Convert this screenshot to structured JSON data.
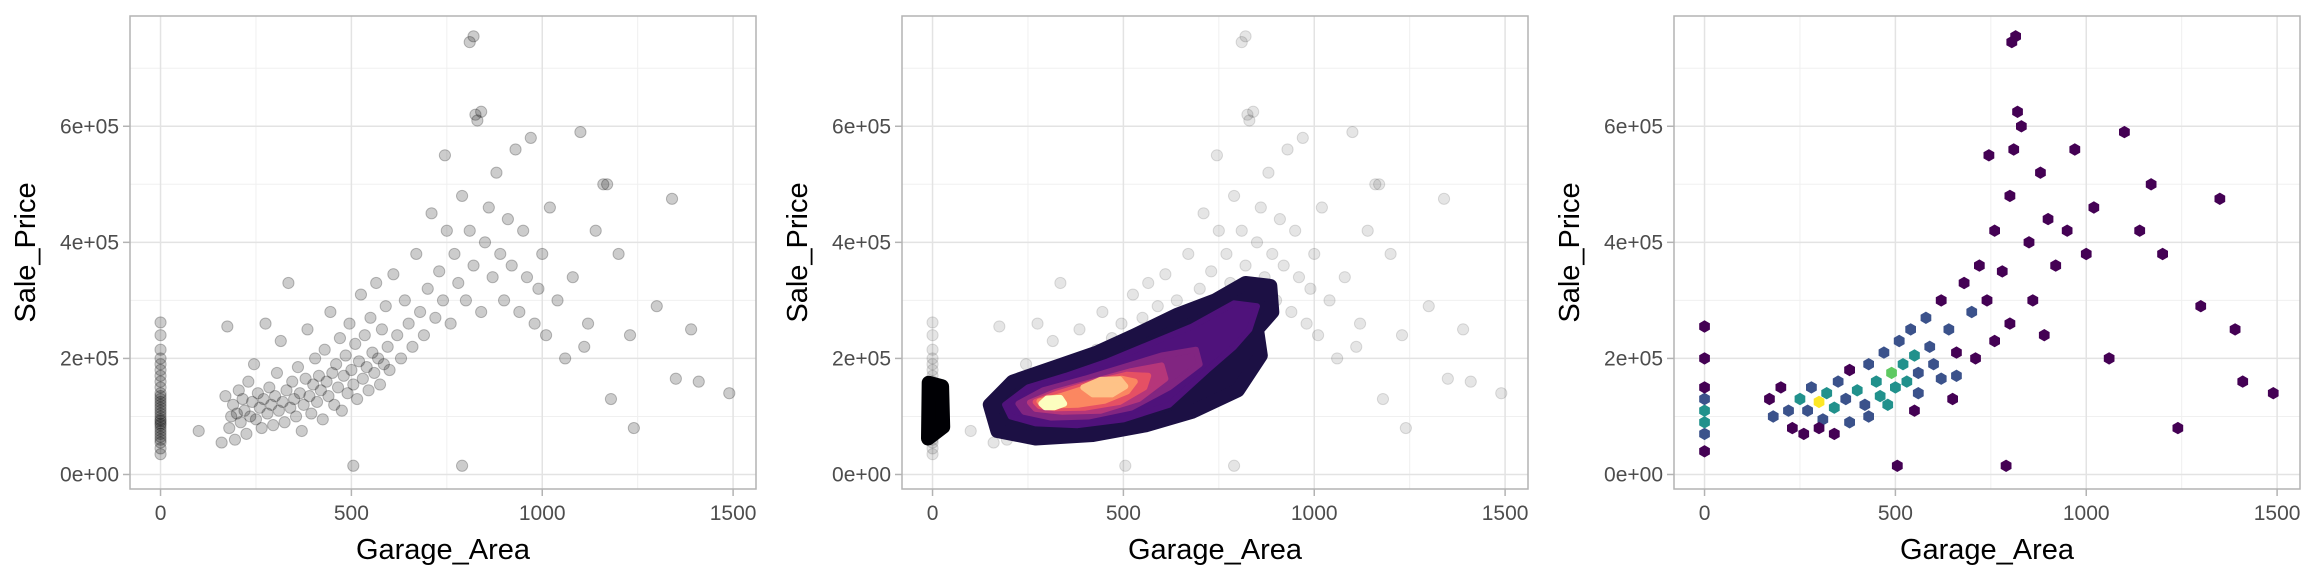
{
  "chart_data": [
    {
      "type": "scatter",
      "panel": "points",
      "xlabel": "Garage_Area",
      "ylabel": "Sale_Price",
      "xlim": [
        -80,
        1560
      ],
      "ylim": [
        -25000,
        790000
      ],
      "xticks": [
        0,
        500,
        1000,
        1500
      ],
      "xtick_labels": [
        "0",
        "500",
        "1000",
        "1500"
      ],
      "yticks": [
        0,
        200000,
        400000,
        600000
      ],
      "ytick_labels": [
        "0e+00",
        "2e+05",
        "4e+05",
        "6e+05"
      ],
      "grid": true,
      "point_color": "#000000",
      "point_alpha": 0.2
    },
    {
      "type": "scatter",
      "panel": "points-with-density-contours",
      "xlabel": "Garage_Area",
      "ylabel": "Sale_Price",
      "xlim": [
        -80,
        1560
      ],
      "ylim": [
        -25000,
        790000
      ],
      "xticks": [
        0,
        500,
        1000,
        1500
      ],
      "xtick_labels": [
        "0",
        "500",
        "1000",
        "1500"
      ],
      "yticks": [
        0,
        200000,
        400000,
        600000
      ],
      "ytick_labels": [
        "0e+00",
        "2e+05",
        "4e+05",
        "6e+05"
      ],
      "grid": true,
      "point_color": "#000000",
      "point_alpha": 0.1,
      "density_palette": [
        "#000004",
        "#1c1044",
        "#4f127b",
        "#812581",
        "#b5367a",
        "#e55064",
        "#fb8761",
        "#fec287",
        "#fcfdbf"
      ],
      "density_peaks": [
        {
          "x": 300,
          "y": 125000,
          "label": "peak-1"
        },
        {
          "x": 460,
          "y": 165000,
          "label": "peak-2"
        }
      ]
    },
    {
      "type": "heatmap",
      "panel": "hexbin",
      "xlabel": "Garage_Area",
      "ylabel": "Sale_Price",
      "xlim": [
        -80,
        1560
      ],
      "ylim": [
        -25000,
        790000
      ],
      "xticks": [
        0,
        500,
        1000,
        1500
      ],
      "xtick_labels": [
        "0",
        "500",
        "1000",
        "1500"
      ],
      "yticks": [
        0,
        200000,
        400000,
        600000
      ],
      "ytick_labels": [
        "0e+00",
        "2e+05",
        "4e+05",
        "6e+05"
      ],
      "grid": true,
      "fill_palette": [
        "#440154",
        "#3b528b",
        "#21918c",
        "#5ec962",
        "#fde725"
      ]
    }
  ],
  "points": [
    [
      0,
      35000
    ],
    [
      0,
      45000
    ],
    [
      0,
      55000
    ],
    [
      0,
      60000
    ],
    [
      0,
      65000
    ],
    [
      0,
      70000
    ],
    [
      0,
      75000
    ],
    [
      0,
      80000
    ],
    [
      0,
      85000
    ],
    [
      0,
      88000
    ],
    [
      0,
      92000
    ],
    [
      0,
      95000
    ],
    [
      0,
      100000
    ],
    [
      0,
      105000
    ],
    [
      0,
      110000
    ],
    [
      0,
      115000
    ],
    [
      0,
      120000
    ],
    [
      0,
      125000
    ],
    [
      0,
      130000
    ],
    [
      0,
      135000
    ],
    [
      0,
      140000
    ],
    [
      0,
      150000
    ],
    [
      0,
      160000
    ],
    [
      0,
      170000
    ],
    [
      0,
      180000
    ],
    [
      0,
      190000
    ],
    [
      0,
      200000
    ],
    [
      0,
      215000
    ],
    [
      0,
      240000
    ],
    [
      0,
      262000
    ],
    [
      100,
      75000
    ],
    [
      160,
      55000
    ],
    [
      170,
      135000
    ],
    [
      175,
      255000
    ],
    [
      180,
      80000
    ],
    [
      185,
      100000
    ],
    [
      190,
      120000
    ],
    [
      195,
      60000
    ],
    [
      200,
      105000
    ],
    [
      205,
      145000
    ],
    [
      210,
      90000
    ],
    [
      215,
      130000
    ],
    [
      220,
      110000
    ],
    [
      225,
      70000
    ],
    [
      230,
      160000
    ],
    [
      235,
      100000
    ],
    [
      240,
      125000
    ],
    [
      245,
      190000
    ],
    [
      250,
      95000
    ],
    [
      255,
      140000
    ],
    [
      260,
      115000
    ],
    [
      265,
      80000
    ],
    [
      270,
      130000
    ],
    [
      275,
      260000
    ],
    [
      280,
      105000
    ],
    [
      285,
      150000
    ],
    [
      290,
      120000
    ],
    [
      295,
      85000
    ],
    [
      300,
      135000
    ],
    [
      305,
      175000
    ],
    [
      310,
      110000
    ],
    [
      315,
      230000
    ],
    [
      320,
      125000
    ],
    [
      325,
      90000
    ],
    [
      330,
      145000
    ],
    [
      335,
      330000
    ],
    [
      340,
      115000
    ],
    [
      345,
      160000
    ],
    [
      350,
      130000
    ],
    [
      355,
      100000
    ],
    [
      360,
      185000
    ],
    [
      365,
      140000
    ],
    [
      370,
      75000
    ],
    [
      375,
      120000
    ],
    [
      380,
      165000
    ],
    [
      385,
      250000
    ],
    [
      390,
      135000
    ],
    [
      395,
      105000
    ],
    [
      400,
      155000
    ],
    [
      405,
      200000
    ],
    [
      410,
      125000
    ],
    [
      415,
      170000
    ],
    [
      420,
      145000
    ],
    [
      425,
      95000
    ],
    [
      430,
      215000
    ],
    [
      435,
      160000
    ],
    [
      440,
      135000
    ],
    [
      445,
      280000
    ],
    [
      450,
      175000
    ],
    [
      455,
      120000
    ],
    [
      460,
      190000
    ],
    [
      465,
      150000
    ],
    [
      470,
      235000
    ],
    [
      475,
      110000
    ],
    [
      480,
      170000
    ],
    [
      485,
      205000
    ],
    [
      490,
      140000
    ],
    [
      495,
      260000
    ],
    [
      500,
      180000
    ],
    [
      505,
      155000
    ],
    [
      510,
      225000
    ],
    [
      515,
      130000
    ],
    [
      520,
      195000
    ],
    [
      525,
      310000
    ],
    [
      530,
      165000
    ],
    [
      535,
      240000
    ],
    [
      540,
      185000
    ],
    [
      545,
      145000
    ],
    [
      550,
      270000
    ],
    [
      555,
      210000
    ],
    [
      560,
      175000
    ],
    [
      565,
      330000
    ],
    [
      570,
      200000
    ],
    [
      575,
      155000
    ],
    [
      580,
      250000
    ],
    [
      585,
      190000
    ],
    [
      590,
      290000
    ],
    [
      595,
      220000
    ],
    [
      600,
      180000
    ],
    [
      610,
      345000
    ],
    [
      620,
      240000
    ],
    [
      630,
      200000
    ],
    [
      640,
      300000
    ],
    [
      650,
      260000
    ],
    [
      660,
      220000
    ],
    [
      670,
      380000
    ],
    [
      680,
      280000
    ],
    [
      690,
      240000
    ],
    [
      700,
      320000
    ],
    [
      710,
      450000
    ],
    [
      720,
      270000
    ],
    [
      730,
      350000
    ],
    [
      740,
      300000
    ],
    [
      750,
      420000
    ],
    [
      760,
      260000
    ],
    [
      770,
      380000
    ],
    [
      780,
      330000
    ],
    [
      790,
      480000
    ],
    [
      800,
      300000
    ],
    [
      810,
      420000
    ],
    [
      820,
      360000
    ],
    [
      830,
      610000
    ],
    [
      840,
      280000
    ],
    [
      850,
      400000
    ],
    [
      860,
      460000
    ],
    [
      870,
      340000
    ],
    [
      880,
      520000
    ],
    [
      890,
      380000
    ],
    [
      900,
      300000
    ],
    [
      910,
      440000
    ],
    [
      920,
      360000
    ],
    [
      930,
      560000
    ],
    [
      940,
      280000
    ],
    [
      950,
      420000
    ],
    [
      960,
      340000
    ],
    [
      970,
      580000
    ],
    [
      980,
      260000
    ],
    [
      990,
      320000
    ],
    [
      1000,
      380000
    ],
    [
      1010,
      240000
    ],
    [
      1020,
      460000
    ],
    [
      1040,
      300000
    ],
    [
      1060,
      200000
    ],
    [
      1080,
      340000
    ],
    [
      1100,
      590000
    ],
    [
      1110,
      220000
    ],
    [
      1120,
      260000
    ],
    [
      1140,
      420000
    ],
    [
      1160,
      500000
    ],
    [
      1170,
      500000
    ],
    [
      1180,
      130000
    ],
    [
      1200,
      380000
    ],
    [
      1230,
      240000
    ],
    [
      1240,
      80000
    ],
    [
      1300,
      290000
    ],
    [
      1340,
      475000
    ],
    [
      1350,
      165000
    ],
    [
      1390,
      250000
    ],
    [
      1410,
      160000
    ],
    [
      1490,
      140000
    ],
    [
      820,
      755000
    ],
    [
      810,
      745000
    ],
    [
      790,
      15000
    ],
    [
      505,
      15000
    ],
    [
      745,
      550000
    ],
    [
      840,
      625000
    ],
    [
      825,
      620000
    ]
  ],
  "density_bands": [
    {
      "id": "band-1",
      "points": [
        [
          -10,
          158000
        ],
        [
          25,
          152000
        ],
        [
          28,
          82000
        ],
        [
          -12,
          62000
        ]
      ]
    },
    {
      "id": "band-2",
      "points": [
        [
          150,
          120000
        ],
        [
          210,
          160000
        ],
        [
          320,
          185000
        ],
        [
          430,
          210000
        ],
        [
          530,
          240000
        ],
        [
          640,
          275000
        ],
        [
          740,
          300000
        ],
        [
          820,
          330000
        ],
        [
          885,
          325000
        ],
        [
          890,
          280000
        ],
        [
          850,
          250000
        ],
        [
          860,
          205000
        ],
        [
          800,
          145000
        ],
        [
          680,
          108000
        ],
        [
          560,
          85000
        ],
        [
          420,
          68000
        ],
        [
          270,
          62000
        ],
        [
          170,
          75000
        ]
      ]
    },
    {
      "id": "band-3",
      "points": [
        [
          190,
          120000
        ],
        [
          250,
          150000
        ],
        [
          350,
          170000
        ],
        [
          460,
          195000
        ],
        [
          570,
          225000
        ],
        [
          680,
          255000
        ],
        [
          790,
          295000
        ],
        [
          850,
          290000
        ],
        [
          830,
          250000
        ],
        [
          790,
          220000
        ],
        [
          720,
          180000
        ],
        [
          620,
          120000
        ],
        [
          500,
          95000
        ],
        [
          380,
          85000
        ],
        [
          270,
          88000
        ],
        [
          205,
          100000
        ]
      ]
    },
    {
      "id": "band-4",
      "points": [
        [
          225,
          122000
        ],
        [
          290,
          145000
        ],
        [
          400,
          165000
        ],
        [
          500,
          185000
        ],
        [
          600,
          205000
        ],
        [
          690,
          215000
        ],
        [
          700,
          190000
        ],
        [
          620,
          150000
        ],
        [
          520,
          115000
        ],
        [
          410,
          100000
        ],
        [
          310,
          98000
        ],
        [
          240,
          108000
        ]
      ]
    },
    {
      "id": "band-5",
      "points": [
        [
          255,
          124000
        ],
        [
          320,
          142000
        ],
        [
          420,
          160000
        ],
        [
          520,
          178000
        ],
        [
          600,
          188000
        ],
        [
          610,
          165000
        ],
        [
          540,
          130000
        ],
        [
          440,
          110000
        ],
        [
          340,
          108000
        ],
        [
          270,
          113000
        ]
      ]
    },
    {
      "id": "band-6",
      "points": [
        [
          270,
          125000
        ],
        [
          330,
          140000
        ],
        [
          420,
          158000
        ],
        [
          510,
          172000
        ],
        [
          565,
          170000
        ],
        [
          555,
          150000
        ],
        [
          490,
          125000
        ],
        [
          400,
          115000
        ],
        [
          320,
          114000
        ],
        [
          280,
          118000
        ]
      ]
    },
    {
      "id": "band-7",
      "points": [
        [
          280,
          126000
        ],
        [
          340,
          136000
        ],
        [
          420,
          153000
        ],
        [
          495,
          165000
        ],
        [
          530,
          160000
        ],
        [
          510,
          143000
        ],
        [
          450,
          127000
        ],
        [
          380,
          120000
        ],
        [
          320,
          119000
        ],
        [
          290,
          121000
        ]
      ]
    },
    {
      "id": "band-8",
      "points": [
        [
          395,
          150000
        ],
        [
          440,
          163000
        ],
        [
          490,
          164000
        ],
        [
          505,
          152000
        ],
        [
          470,
          138000
        ],
        [
          420,
          138000
        ]
      ]
    },
    {
      "id": "band-9",
      "points": [
        [
          285,
          122000
        ],
        [
          300,
          131000
        ],
        [
          335,
          132000
        ],
        [
          345,
          122000
        ],
        [
          320,
          116000
        ],
        [
          295,
          116000
        ]
      ]
    }
  ],
  "hexbins": [
    [
      0,
      40000,
      0
    ],
    [
      0,
      70000,
      1
    ],
    [
      0,
      90000,
      2
    ],
    [
      0,
      110000,
      2
    ],
    [
      0,
      130000,
      1
    ],
    [
      0,
      150000,
      0
    ],
    [
      0,
      200000,
      0
    ],
    [
      0,
      255000,
      0
    ],
    [
      170,
      130000,
      0
    ],
    [
      180,
      100000,
      1
    ],
    [
      200,
      150000,
      0
    ],
    [
      220,
      110000,
      1
    ],
    [
      230,
      80000,
      0
    ],
    [
      250,
      130000,
      2
    ],
    [
      270,
      110000,
      1
    ],
    [
      280,
      150000,
      1
    ],
    [
      300,
      125000,
      4
    ],
    [
      310,
      95000,
      1
    ],
    [
      320,
      140000,
      2
    ],
    [
      340,
      115000,
      2
    ],
    [
      350,
      160000,
      1
    ],
    [
      370,
      130000,
      1
    ],
    [
      380,
      180000,
      0
    ],
    [
      400,
      145000,
      2
    ],
    [
      420,
      120000,
      1
    ],
    [
      430,
      190000,
      1
    ],
    [
      450,
      160000,
      2
    ],
    [
      460,
      135000,
      2
    ],
    [
      470,
      210000,
      1
    ],
    [
      490,
      175000,
      3
    ],
    [
      500,
      150000,
      2
    ],
    [
      510,
      230000,
      1
    ],
    [
      520,
      190000,
      2
    ],
    [
      530,
      160000,
      2
    ],
    [
      540,
      250000,
      1
    ],
    [
      550,
      205000,
      2
    ],
    [
      560,
      175000,
      1
    ],
    [
      580,
      270000,
      1
    ],
    [
      590,
      220000,
      1
    ],
    [
      600,
      190000,
      1
    ],
    [
      620,
      300000,
      0
    ],
    [
      640,
      250000,
      1
    ],
    [
      660,
      210000,
      0
    ],
    [
      680,
      330000,
      0
    ],
    [
      700,
      280000,
      1
    ],
    [
      720,
      360000,
      0
    ],
    [
      740,
      300000,
      0
    ],
    [
      760,
      420000,
      0
    ],
    [
      780,
      350000,
      0
    ],
    [
      800,
      480000,
      0
    ],
    [
      810,
      560000,
      0
    ],
    [
      820,
      625000,
      0
    ],
    [
      830,
      600000,
      0
    ],
    [
      850,
      400000,
      0
    ],
    [
      880,
      520000,
      0
    ],
    [
      900,
      440000,
      0
    ],
    [
      920,
      360000,
      0
    ],
    [
      950,
      420000,
      0
    ],
    [
      970,
      560000,
      0
    ],
    [
      1000,
      380000,
      0
    ],
    [
      1020,
      460000,
      0
    ],
    [
      1060,
      200000,
      0
    ],
    [
      1100,
      590000,
      0
    ],
    [
      1140,
      420000,
      0
    ],
    [
      1170,
      500000,
      0
    ],
    [
      1200,
      380000,
      0
    ],
    [
      1240,
      80000,
      0
    ],
    [
      1300,
      290000,
      0
    ],
    [
      1350,
      475000,
      0
    ],
    [
      1390,
      250000,
      0
    ],
    [
      1410,
      160000,
      0
    ],
    [
      1490,
      140000,
      0
    ],
    [
      815,
      755000,
      0
    ],
    [
      805,
      745000,
      0
    ],
    [
      790,
      15000,
      0
    ],
    [
      505,
      15000,
      0
    ],
    [
      745,
      550000,
      0
    ],
    [
      480,
      120000,
      2
    ],
    [
      560,
      140000,
      1
    ],
    [
      620,
      165000,
      1
    ],
    [
      660,
      170000,
      1
    ],
    [
      710,
      200000,
      0
    ],
    [
      760,
      230000,
      0
    ],
    [
      800,
      260000,
      0
    ],
    [
      860,
      300000,
      0
    ],
    [
      890,
      240000,
      0
    ],
    [
      430,
      100000,
      1
    ],
    [
      380,
      90000,
      1
    ],
    [
      300,
      80000,
      0
    ],
    [
      260,
      70000,
      0
    ],
    [
      340,
      70000,
      0
    ],
    [
      550,
      110000,
      0
    ],
    [
      650,
      130000,
      0
    ]
  ]
}
